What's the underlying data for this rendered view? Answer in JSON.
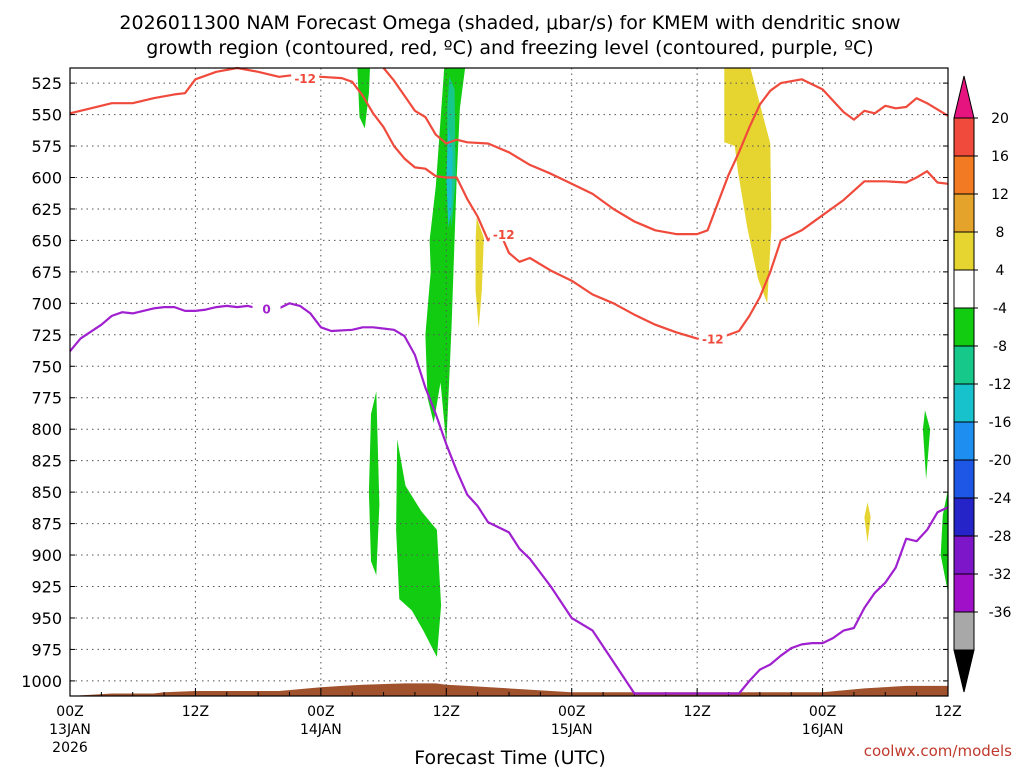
{
  "title": {
    "line1": "2026011300 NAM Forecast Omega (shaded, μbar/s) for KMEM with dendritic snow",
    "line2": "growth region (contoured, red, ºC) and freezing level (contoured, purple, ºC)"
  },
  "credit": "coolwx.com/models",
  "chart_data": {
    "type": "heatmap",
    "title": "2026011300 NAM Forecast Omega (shaded, μbar/s) for KMEM with dendritic snow growth region (contoured, red, ºC) and freezing level (contoured, purple, ºC)",
    "xlabel": "Forecast Time (UTC)",
    "ylabel": "",
    "x_unit": "forecast hours from 00Z 13JAN 2026",
    "xlim": [
      0,
      84
    ],
    "ylim": [
      1012,
      513
    ],
    "x_ticks": [
      {
        "hour": 0,
        "time": "00Z",
        "date": "13JAN",
        "year": "2026"
      },
      {
        "hour": 12,
        "time": "12Z",
        "date": "",
        "year": ""
      },
      {
        "hour": 24,
        "time": "00Z",
        "date": "14JAN",
        "year": ""
      },
      {
        "hour": 36,
        "time": "12Z",
        "date": "",
        "year": ""
      },
      {
        "hour": 48,
        "time": "00Z",
        "date": "15JAN",
        "year": ""
      },
      {
        "hour": 60,
        "time": "12Z",
        "date": "",
        "year": ""
      },
      {
        "hour": 72,
        "time": "00Z",
        "date": "16JAN",
        "year": ""
      },
      {
        "hour": 84,
        "time": "12Z",
        "date": "",
        "year": ""
      }
    ],
    "y_ticks": [
      525,
      550,
      575,
      600,
      625,
      650,
      675,
      700,
      725,
      750,
      775,
      800,
      825,
      850,
      875,
      900,
      925,
      950,
      975,
      1000
    ],
    "colorbar": {
      "labels": [
        "20",
        "16",
        "12",
        "8",
        "4",
        "-4",
        "-8",
        "-12",
        "-16",
        "-20",
        "-24",
        "-28",
        "-32",
        "-36"
      ],
      "colors": [
        "#e5147f",
        "#f04a3c",
        "#f27a22",
        "#e4a42b",
        "#e6d530",
        "#ffffff",
        "#12cc12",
        "#16c98a",
        "#18c2cc",
        "#1e8ef0",
        "#1e56e6",
        "#2424c8",
        "#7d16c8",
        "#a010c8",
        "#a8a8a8",
        "#000000"
      ]
    },
    "series": [
      {
        "name": "Dendritic growth region -12 ºC (upper)",
        "color": "#f04a3c",
        "label": "-12",
        "points": [
          [
            0,
            549
          ],
          [
            2,
            545
          ],
          [
            4,
            541
          ],
          [
            6,
            541
          ],
          [
            8,
            537
          ],
          [
            10,
            534
          ],
          [
            11,
            533
          ],
          [
            12,
            522
          ],
          [
            14,
            516
          ],
          [
            16,
            513
          ],
          [
            18,
            516
          ],
          [
            20,
            520
          ],
          [
            22,
            518
          ],
          [
            24,
            520
          ],
          [
            26,
            521
          ],
          [
            27,
            524
          ],
          [
            28,
            535
          ],
          [
            29,
            549
          ],
          [
            30,
            560
          ],
          [
            31,
            575
          ],
          [
            32,
            585
          ],
          [
            33,
            592
          ],
          [
            34,
            593
          ],
          [
            35,
            599
          ],
          [
            36,
            600
          ],
          [
            37,
            600
          ],
          [
            38,
            617
          ],
          [
            39,
            631
          ],
          [
            40,
            650
          ],
          [
            41,
            641
          ],
          [
            42,
            660
          ],
          [
            43,
            667
          ],
          [
            44,
            664
          ],
          [
            46,
            674
          ],
          [
            48,
            682
          ],
          [
            50,
            693
          ],
          [
            52,
            700
          ],
          [
            54,
            709
          ],
          [
            56,
            717
          ],
          [
            58,
            723
          ],
          [
            60,
            728
          ],
          [
            62,
            728
          ],
          [
            64,
            722
          ],
          [
            65,
            710
          ],
          [
            66,
            695
          ],
          [
            67,
            675
          ],
          [
            68,
            650
          ],
          [
            70,
            642
          ],
          [
            72,
            630
          ],
          [
            74,
            618
          ],
          [
            76,
            603
          ],
          [
            78,
            603
          ],
          [
            80,
            604
          ],
          [
            81,
            600
          ],
          [
            82,
            595
          ],
          [
            83,
            604
          ],
          [
            84,
            605
          ]
        ]
      },
      {
        "name": "Dendritic growth region -12 ºC (lower)",
        "color": "#f04a3c",
        "label": "-12",
        "points": [
          [
            30,
            513
          ],
          [
            31,
            523
          ],
          [
            32,
            535
          ],
          [
            33,
            547
          ],
          [
            34,
            552
          ],
          [
            35,
            566
          ],
          [
            36,
            573
          ],
          [
            37,
            570
          ],
          [
            38,
            572
          ],
          [
            40,
            573
          ],
          [
            42,
            580
          ],
          [
            44,
            590
          ],
          [
            46,
            597
          ],
          [
            48,
            605
          ],
          [
            50,
            613
          ],
          [
            52,
            625
          ],
          [
            54,
            635
          ],
          [
            56,
            642
          ],
          [
            58,
            645
          ],
          [
            60,
            645
          ],
          [
            61,
            642
          ],
          [
            62,
            620
          ],
          [
            63,
            598
          ],
          [
            64,
            580
          ],
          [
            65,
            560
          ],
          [
            66,
            542
          ],
          [
            67,
            531
          ],
          [
            68,
            525
          ],
          [
            70,
            522
          ],
          [
            72,
            530
          ],
          [
            74,
            548
          ],
          [
            75,
            554
          ],
          [
            76,
            547
          ],
          [
            77,
            549
          ],
          [
            78,
            543
          ],
          [
            79,
            545
          ],
          [
            80,
            544
          ],
          [
            81,
            537
          ],
          [
            82,
            541
          ],
          [
            84,
            551
          ]
        ]
      },
      {
        "name": "Freezing level 0 ºC",
        "color": "#a020d0",
        "label": "0",
        "points": [
          [
            0,
            738
          ],
          [
            1,
            728
          ],
          [
            3,
            717
          ],
          [
            4,
            710
          ],
          [
            5,
            707
          ],
          [
            6,
            708
          ],
          [
            8,
            704
          ],
          [
            9,
            703
          ],
          [
            10,
            703
          ],
          [
            11,
            706
          ],
          [
            12,
            706
          ],
          [
            13,
            705
          ],
          [
            14,
            703
          ],
          [
            15,
            702
          ],
          [
            16,
            703
          ],
          [
            17,
            702
          ],
          [
            18,
            704
          ],
          [
            19,
            703
          ],
          [
            20,
            704
          ],
          [
            21,
            700
          ],
          [
            22,
            702
          ],
          [
            23,
            708
          ],
          [
            24,
            719
          ],
          [
            25,
            722
          ],
          [
            27,
            721
          ],
          [
            28,
            719
          ],
          [
            29,
            719
          ],
          [
            31,
            721
          ],
          [
            32,
            726
          ],
          [
            33,
            741
          ],
          [
            34,
            767
          ],
          [
            35,
            788
          ],
          [
            36,
            812
          ],
          [
            37,
            833
          ],
          [
            38,
            852
          ],
          [
            39,
            861
          ],
          [
            40,
            874
          ],
          [
            42,
            882
          ],
          [
            43,
            895
          ],
          [
            44,
            903
          ],
          [
            46,
            925
          ],
          [
            48,
            950
          ],
          [
            50,
            960
          ],
          [
            52,
            985
          ],
          [
            54,
            1010
          ],
          [
            57,
            1010
          ],
          [
            60,
            1010
          ],
          [
            62,
            1010
          ],
          [
            64,
            1010
          ],
          [
            65,
            1000
          ],
          [
            66,
            991
          ],
          [
            67,
            987
          ],
          [
            68,
            980
          ],
          [
            69,
            974
          ],
          [
            70,
            971
          ],
          [
            71,
            970
          ],
          [
            72,
            970
          ],
          [
            73,
            966
          ],
          [
            74,
            960
          ],
          [
            75,
            958
          ],
          [
            76,
            942
          ],
          [
            77,
            930
          ],
          [
            78,
            922
          ],
          [
            79,
            910
          ],
          [
            80,
            887
          ],
          [
            81,
            889
          ],
          [
            82,
            880
          ],
          [
            83,
            866
          ],
          [
            84,
            862
          ]
        ]
      }
    ],
    "omega_regions": [
      {
        "value_range": "-8 to -4",
        "color": "#12cc12",
        "points": [
          [
            27.5,
            513
          ],
          [
            28.7,
            513
          ],
          [
            28.6,
            533
          ],
          [
            28.2,
            561
          ],
          [
            27.7,
            552
          ]
        ]
      },
      {
        "value_range": "-8 to -4",
        "color": "#12cc12",
        "points": [
          [
            35.8,
            513
          ],
          [
            37.8,
            513
          ],
          [
            37.3,
            545
          ],
          [
            37,
            600
          ],
          [
            36.5,
            720
          ],
          [
            36,
            812
          ],
          [
            35.3,
            750
          ],
          [
            34.7,
            716
          ],
          [
            34.4,
            650
          ],
          [
            35,
            607
          ],
          [
            35.4,
            560
          ]
        ]
      },
      {
        "value_range": "-12 to -8",
        "color": "#16c98a",
        "points": [
          [
            36.3,
            520
          ],
          [
            36.8,
            530
          ],
          [
            36.9,
            600
          ],
          [
            36.5,
            640
          ],
          [
            36.1,
            600
          ],
          [
            36.1,
            545
          ]
        ]
      },
      {
        "value_range": "-16 to -12",
        "color": "#18c2cc",
        "points": [
          [
            36.2,
            560
          ],
          [
            36.6,
            580
          ],
          [
            36.5,
            625
          ],
          [
            36.2,
            640
          ],
          [
            36,
            600
          ]
        ]
      },
      {
        "value_range": "-8 to -4",
        "color": "#12cc12",
        "points": [
          [
            34.8,
            650
          ],
          [
            35.3,
            700
          ],
          [
            35.5,
            760
          ],
          [
            34.8,
            795
          ],
          [
            34.2,
            775
          ],
          [
            34,
            725
          ],
          [
            34.4,
            685
          ]
        ]
      },
      {
        "value_range": "-8 to -4",
        "color": "#12cc12",
        "points": [
          [
            28.8,
            788
          ],
          [
            29.3,
            770
          ],
          [
            29.6,
            860
          ],
          [
            29.3,
            916
          ],
          [
            28.8,
            905
          ],
          [
            28.6,
            850
          ]
        ]
      },
      {
        "value_range": "-8 to -4",
        "color": "#12cc12",
        "points": [
          [
            31.3,
            808
          ],
          [
            32.1,
            845
          ],
          [
            33.6,
            865
          ],
          [
            35.1,
            880
          ],
          [
            35.5,
            940
          ],
          [
            35.1,
            981
          ],
          [
            33.8,
            960
          ],
          [
            32.7,
            944
          ],
          [
            31.5,
            935
          ],
          [
            31.2,
            880
          ]
        ]
      },
      {
        "value_range": "4 to 8",
        "color": "#e6d530",
        "points": [
          [
            38.9,
            632
          ],
          [
            39.6,
            648
          ],
          [
            39.4,
            690
          ],
          [
            39.1,
            720
          ],
          [
            38.8,
            690
          ],
          [
            38.8,
            650
          ]
        ]
      },
      {
        "value_range": "4 to 8",
        "color": "#e6d530",
        "points": [
          [
            62.6,
            513
          ],
          [
            65.1,
            513
          ],
          [
            67,
            573
          ],
          [
            67.1,
            640
          ],
          [
            66.7,
            700
          ],
          [
            65.8,
            680
          ],
          [
            64.8,
            640
          ],
          [
            63.9,
            595
          ],
          [
            63.6,
            575
          ],
          [
            62.6,
            572
          ]
        ]
      },
      {
        "value_range": "4 to 8",
        "color": "#e6d530",
        "points": [
          [
            76.3,
            858
          ],
          [
            76.6,
            870
          ],
          [
            76.3,
            890
          ],
          [
            76,
            870
          ]
        ]
      },
      {
        "value_range": "-8 to -4",
        "color": "#12cc12",
        "points": [
          [
            81.8,
            785
          ],
          [
            82.3,
            800
          ],
          [
            81.9,
            840
          ],
          [
            81.6,
            800
          ]
        ]
      },
      {
        "value_range": "-8 to -4",
        "color": "#12cc12",
        "points": [
          [
            84,
            848
          ],
          [
            84,
            930
          ],
          [
            83.3,
            900
          ],
          [
            83.5,
            868
          ]
        ]
      }
    ],
    "terrain": {
      "color": "#a0522d",
      "surface_pressure": [
        [
          0,
          1012
        ],
        [
          2,
          1011
        ],
        [
          4,
          1010
        ],
        [
          8,
          1010
        ],
        [
          9,
          1009
        ],
        [
          12,
          1008
        ],
        [
          20,
          1008
        ],
        [
          24,
          1005
        ],
        [
          26,
          1004
        ],
        [
          28,
          1003
        ],
        [
          32,
          1002
        ],
        [
          35,
          1002
        ],
        [
          36,
          1003
        ],
        [
          38,
          1004
        ],
        [
          48,
          1009
        ],
        [
          52,
          1009
        ],
        [
          72,
          1009
        ],
        [
          76,
          1006
        ],
        [
          80,
          1004
        ],
        [
          84,
          1004
        ]
      ]
    }
  }
}
